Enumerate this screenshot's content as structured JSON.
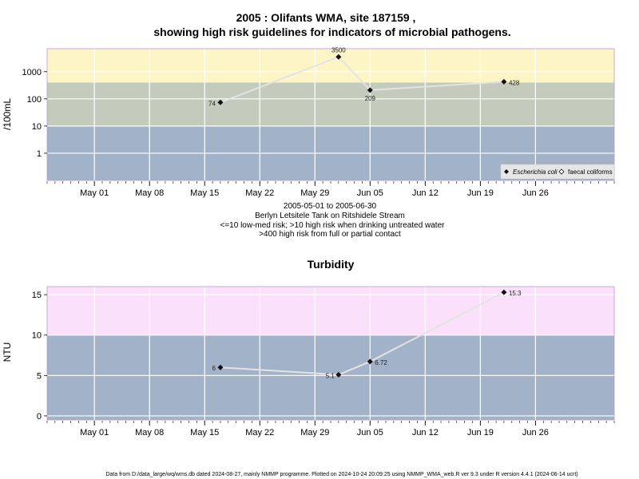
{
  "chart_data": [
    {
      "type": "line",
      "title": "2005 : Olifants WMA, site 187159 ,",
      "subtitle": "showing high risk guidelines for indicators of microbial pathogens.",
      "ylabel": "/100mL",
      "y_scale": "log",
      "ylim": [
        0.1,
        7000
      ],
      "y_ticks": [
        1,
        10,
        100,
        1000
      ],
      "y_tick_labels": [
        "1",
        "10",
        "100",
        "1000"
      ],
      "xlim": [
        "2005-04-25",
        "2005-07-06"
      ],
      "x_ticks": [
        "2005-05-01",
        "2005-05-08",
        "2005-05-15",
        "2005-05-22",
        "2005-05-29",
        "2005-06-05",
        "2005-06-12",
        "2005-06-19",
        "2005-06-26"
      ],
      "x_tick_labels": [
        "May 01",
        "May 08",
        "May 15",
        "May 22",
        "May 29",
        "Jun 05",
        "Jun 12",
        "Jun 19",
        "Jun 26"
      ],
      "grid": true,
      "bands": [
        {
          "from": 0.1,
          "to": 10,
          "color": "#a2b2c8"
        },
        {
          "from": 10,
          "to": 400,
          "color": "#c4cbbc"
        },
        {
          "from": 400,
          "to": 7000,
          "color": "#fdf5c6"
        }
      ],
      "series": [
        {
          "name": "Escherichia coli",
          "marker": "filled-diamond",
          "x": [
            "2005-05-17",
            "2005-06-01",
            "2005-06-05",
            "2005-06-22"
          ],
          "y": [
            74,
            3500,
            209,
            428
          ],
          "labels": [
            "74",
            "3500",
            "209",
            "428"
          ]
        }
      ],
      "legend": {
        "position": "bottom-right",
        "items": [
          {
            "label": "Escherichia coli",
            "marker": "filled-diamond",
            "italic": true
          },
          {
            "label": "faecal coliforms",
            "marker": "open-diamond",
            "italic": false
          }
        ]
      },
      "notes": [
        "2005-05-01 to 2005-06-30",
        "Berlyn Letsitele Tank on Ritshidele Stream",
        "<=10 low-med risk; >10 high risk when drinking untreated water",
        ">400 high risk from full or partial contact"
      ]
    },
    {
      "type": "line",
      "title": "Turbidity",
      "ylabel": "NTU",
      "ylim": [
        -0.5,
        16
      ],
      "y_ticks": [
        0,
        5,
        10,
        15
      ],
      "y_tick_labels": [
        "0",
        "5",
        "10",
        "15"
      ],
      "xlim": [
        "2005-04-25",
        "2005-07-06"
      ],
      "x_ticks": [
        "2005-05-01",
        "2005-05-08",
        "2005-05-15",
        "2005-05-22",
        "2005-05-29",
        "2005-06-05",
        "2005-06-12",
        "2005-06-19",
        "2005-06-26"
      ],
      "x_tick_labels": [
        "May 01",
        "May 08",
        "May 15",
        "May 22",
        "May 29",
        "Jun 05",
        "Jun 12",
        "Jun 19",
        "Jun 26"
      ],
      "grid": true,
      "bands": [
        {
          "from": -0.5,
          "to": 10,
          "color": "#a2b2c8"
        },
        {
          "from": 10,
          "to": 16,
          "color": "#fbe0fb"
        }
      ],
      "series": [
        {
          "marker": "filled-diamond",
          "x": [
            "2005-05-17",
            "2005-06-01",
            "2005-06-05",
            "2005-06-22"
          ],
          "y": [
            6,
            5.1,
            6.72,
            15.3
          ],
          "labels": [
            "6",
            "5.1",
            "6.72",
            "15.3"
          ]
        }
      ]
    }
  ],
  "footer": "Data from D:/data_large/wq/wms.db dated 2024-08-27, mainly NMMP programme. Plotted on 2024-10-24 20:09:25 using NMMP_WMA_web.R ver 9.3 under R version 4.4.1 (2024-06-14 ucrt)",
  "colors": {
    "line": "#e3e3e3",
    "marker": "#111111",
    "grid": "#ffffff",
    "frame": "#b89cc8"
  }
}
